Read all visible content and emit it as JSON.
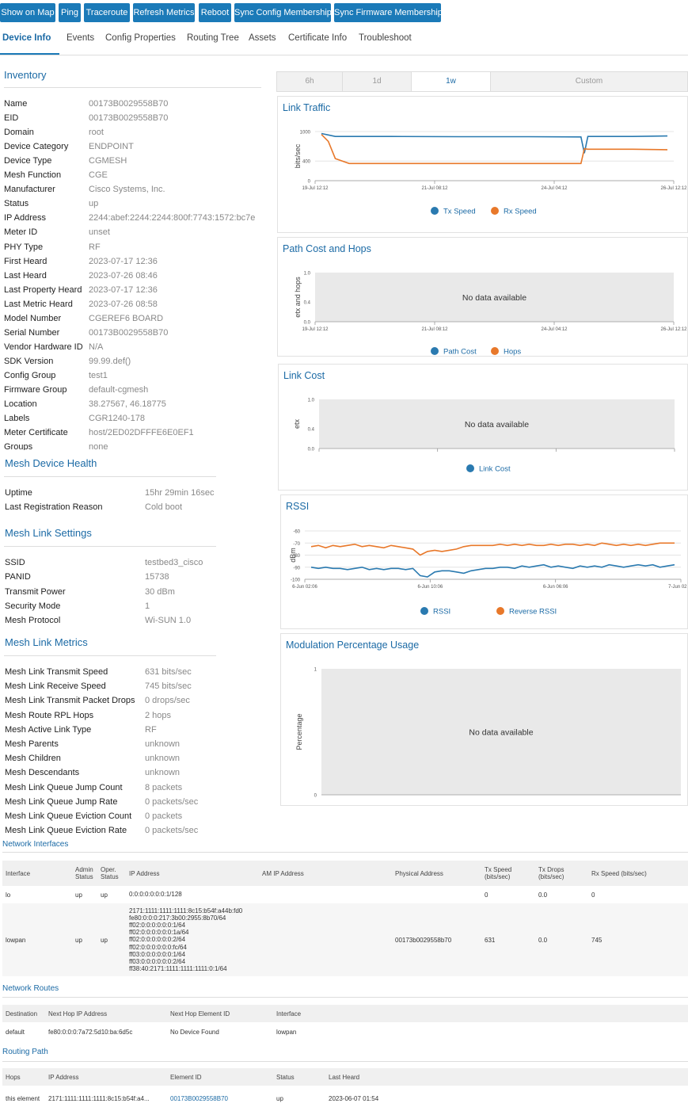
{
  "toolbar": {
    "buttons": [
      "Show on Map",
      "Ping",
      "Traceroute",
      "Refresh Metrics",
      "Reboot",
      "Sync Config Membership",
      "Sync Firmware Membership"
    ]
  },
  "tabs": [
    "Device Info",
    "Events",
    "Config Properties",
    "Routing Tree",
    "Assets",
    "Certificate Info",
    "Troubleshoot"
  ],
  "inventory": {
    "title": "Inventory",
    "rows": [
      {
        "label": "Name",
        "value": "00173B0029558B70"
      },
      {
        "label": "EID",
        "value": "00173B0029558B70"
      },
      {
        "label": "Domain",
        "value": "root"
      },
      {
        "label": "Device Category",
        "value": "ENDPOINT"
      },
      {
        "label": "Device Type",
        "value": "CGMESH"
      },
      {
        "label": "Mesh Function",
        "value": "CGE"
      },
      {
        "label": "Manufacturer",
        "value": "Cisco Systems, Inc."
      },
      {
        "label": "Status",
        "value": "up"
      },
      {
        "label": "IP Address",
        "value": "2244:abef:2244:2244:800f:7743:1572:bc7e"
      },
      {
        "label": "Meter ID",
        "value": "unset"
      },
      {
        "label": "PHY Type",
        "value": "RF"
      },
      {
        "label": "First Heard",
        "value": "2023-07-17 12:36"
      },
      {
        "label": "Last Heard",
        "value": "2023-07-26 08:46"
      },
      {
        "label": "Last Property Heard",
        "value": "2023-07-17 12:36"
      },
      {
        "label": "Last Metric Heard",
        "value": "2023-07-26 08:58"
      },
      {
        "label": "Model Number",
        "value": "CGEREF6 BOARD"
      },
      {
        "label": "Serial Number",
        "value": "00173B0029558B70"
      },
      {
        "label": "Vendor Hardware ID",
        "value": "N/A"
      },
      {
        "label": "SDK Version",
        "value": "99.99.def()"
      },
      {
        "label": "Config Group",
        "value": "test1"
      },
      {
        "label": "Firmware Group",
        "value": "default-cgmesh"
      },
      {
        "label": "Location",
        "value": "38.27567, 46.18775"
      },
      {
        "label": "Labels",
        "value": "CGR1240-178"
      },
      {
        "label": "Meter Certificate",
        "value": "host/2ED02DFFFE6E0EF1"
      },
      {
        "label": "Groups",
        "value": "none"
      }
    ]
  },
  "health": {
    "title": "Mesh Device Health",
    "rows": [
      {
        "label": "Uptime",
        "value": "15hr 29min 16sec"
      },
      {
        "label": "Last Registration Reason",
        "value": "Cold boot"
      }
    ]
  },
  "link_settings": {
    "title": "Mesh Link Settings",
    "rows": [
      {
        "label": "SSID",
        "value": "testbed3_cisco"
      },
      {
        "label": "PANID",
        "value": "15738"
      },
      {
        "label": "Transmit Power",
        "value": "30 dBm"
      },
      {
        "label": "Security Mode",
        "value": "1"
      },
      {
        "label": "Mesh Protocol",
        "value": "Wi-SUN 1.0"
      }
    ]
  },
  "link_metrics": {
    "title": "Mesh Link Metrics",
    "rows": [
      {
        "label": "Mesh Link Transmit Speed",
        "value": "631 bits/sec"
      },
      {
        "label": "Mesh Link Receive Speed",
        "value": "745 bits/sec"
      },
      {
        "label": "Mesh Link Transmit Packet Drops",
        "value": "0 drops/sec"
      },
      {
        "label": "Mesh Route RPL Hops",
        "value": "2 hops"
      },
      {
        "label": "Mesh Active Link Type",
        "value": "RF"
      },
      {
        "label": "Mesh Parents",
        "value": "unknown"
      },
      {
        "label": "Mesh Children",
        "value": "unknown"
      },
      {
        "label": "Mesh Descendants",
        "value": "unknown"
      },
      {
        "label": "Mesh Link Queue Jump Count",
        "value": "8 packets"
      },
      {
        "label": "Mesh Link Queue Jump Rate",
        "value": "0 packets/sec"
      },
      {
        "label": "Mesh Link Queue Eviction Count",
        "value": "0 packets"
      },
      {
        "label": "Mesh Link Queue Eviction Rate",
        "value": "0 packets/sec"
      }
    ]
  },
  "time_range": {
    "options": [
      "6h",
      "1d",
      "1w",
      "Custom"
    ],
    "selected": "1w"
  },
  "no_data": "No data available",
  "colors": {
    "blue": "#2a7ab0",
    "orange": "#e8782a",
    "accent": "#1b7ab8"
  },
  "chart_data": [
    {
      "type": "line",
      "title": "Link Traffic",
      "ylabel": "bits/sec",
      "ylim": [
        0,
        1000
      ],
      "yticks": [
        "0",
        "400",
        "1000"
      ],
      "xticks": [
        "19-Jul 12:12",
        "21-Jul 08:12",
        "24-Jul 04:12",
        "26-Jul 12:12"
      ],
      "x": [
        0,
        0.02,
        0.04,
        0.08,
        0.2,
        0.4,
        0.6,
        0.75,
        0.76,
        0.77,
        0.79,
        0.9,
        1.0
      ],
      "series": [
        {
          "name": "Tx Speed",
          "color": "#2a7ab0",
          "values": [
            960,
            930,
            900,
            900,
            900,
            895,
            895,
            890,
            560,
            900,
            900,
            900,
            910
          ]
        },
        {
          "name": "Rx Speed",
          "color": "#e8782a",
          "values": [
            940,
            800,
            450,
            350,
            350,
            350,
            350,
            350,
            650,
            640,
            640,
            640,
            630
          ]
        }
      ]
    },
    {
      "type": "line",
      "title": "Path Cost and Hops",
      "ylabel": "etx and hops",
      "ylim": [
        0,
        1
      ],
      "yticks": [
        "0.0",
        "0.4",
        "1.0"
      ],
      "xticks": [
        "19-Jul 12:12",
        "21-Jul 08:12",
        "24-Jul 04:12",
        "26-Jul 12:12"
      ],
      "series": [
        {
          "name": "Path Cost",
          "color": "#2a7ab0",
          "values": []
        },
        {
          "name": "Hops",
          "color": "#e8782a",
          "values": []
        }
      ]
    },
    {
      "type": "line",
      "title": "Link Cost",
      "ylabel": "etx",
      "ylim": [
        0,
        1
      ],
      "yticks": [
        "0.0",
        "0.4",
        "1.0"
      ],
      "series": [
        {
          "name": "Link Cost",
          "color": "#2a7ab0",
          "values": []
        }
      ]
    },
    {
      "type": "line",
      "title": "RSSI",
      "ylabel": "dBm",
      "ylim": [
        -100,
        -60
      ],
      "yticks": [
        "-60",
        "-70",
        "-80",
        "-90",
        "-100"
      ],
      "xticks": [
        "6-Jun 02:06",
        "6-Jun 10:06",
        "6-Jun 06:06",
        "7-Jun 02:06"
      ],
      "series": [
        {
          "name": "RSSI",
          "color": "#2a7ab0",
          "values": [
            -90,
            -91,
            -90,
            -91,
            -91,
            -92,
            -91,
            -90,
            -92,
            -91,
            -92,
            -91,
            -91,
            -92,
            -91,
            -97,
            -98,
            -94,
            -93,
            -93,
            -94,
            -95,
            -93,
            -92,
            -91,
            -91,
            -90,
            -90,
            -91,
            -89,
            -90,
            -89,
            -88,
            -90,
            -89,
            -90,
            -91,
            -89,
            -90,
            -89,
            -90,
            -88,
            -89,
            -90,
            -89,
            -88,
            -89,
            -88,
            -90,
            -89,
            -88
          ]
        },
        {
          "name": "Reverse RSSI",
          "color": "#e8782a",
          "values": [
            -73,
            -72,
            -74,
            -72,
            -73,
            -72,
            -71,
            -73,
            -72,
            -73,
            -74,
            -72,
            -73,
            -74,
            -75,
            -80,
            -77,
            -76,
            -77,
            -76,
            -75,
            -73,
            -72,
            -72,
            -72,
            -72,
            -71,
            -72,
            -71,
            -72,
            -71,
            -72,
            -72,
            -71,
            -72,
            -71,
            -71,
            -72,
            -71,
            -72,
            -70,
            -71,
            -72,
            -71,
            -72,
            -71,
            -72,
            -71,
            -70,
            -70,
            -70
          ]
        }
      ]
    },
    {
      "type": "line",
      "title": "Modulation Percentage Usage",
      "ylabel": "Percentage",
      "ylim": [
        0,
        1
      ],
      "yticks": [
        "0",
        "1"
      ],
      "series": []
    }
  ],
  "network_interfaces": {
    "title": "Network Interfaces",
    "headers": [
      "Interface",
      "Admin Status",
      "Oper. Status",
      "IP Address",
      "AM IP Address",
      "Physical Address",
      "Tx Speed (bits/sec)",
      "Tx Drops (bits/sec)",
      "Rx Speed (bits/sec)"
    ],
    "rows": [
      [
        "lo",
        "up",
        "up",
        [
          "0:0:0:0:0:0:0:1/128"
        ],
        "",
        "",
        "0",
        "0.0",
        "0"
      ],
      [
        "lowpan",
        "up",
        "up",
        [
          "2171:1111:1111:1111:8c15:b54f:a44b:fd0",
          "fe80:0:0:0:217:3b00:2955:8b70/64",
          "ff02:0:0:0:0:0:0:1/64",
          "ff02:0:0:0:0:0:0:1a/64",
          "ff02:0:0:0:0:0:0:2/64",
          "ff02:0:0:0:0:0:0:fc/64",
          "ff03:0:0:0:0:0:0:1/64",
          "ff03:0:0:0:0:0:0:2/64",
          "ff38:40:2171:1111:1111:1111:0:1/64"
        ],
        "",
        "00173b0029558b70",
        "631",
        "0.0",
        "745"
      ]
    ]
  },
  "network_routes": {
    "title": "Network Routes",
    "headers": [
      "Destination",
      "Next Hop IP Address",
      "Next Hop Element ID",
      "Interface"
    ],
    "rows": [
      [
        "default",
        "fe80:0:0:0:7a72:5d10:ba:6d5c",
        "No Device Found",
        "lowpan"
      ]
    ]
  },
  "routing_path": {
    "title": "Routing Path",
    "headers": [
      "Hops",
      "IP Address",
      "Element ID",
      "Status",
      "Last Heard"
    ],
    "rows": [
      [
        "this element",
        "2171:1111:1111:1111:8c15:b54f:a4...",
        "00173B0029558B70",
        "up",
        "2023-06-07 01:54"
      ]
    ]
  }
}
